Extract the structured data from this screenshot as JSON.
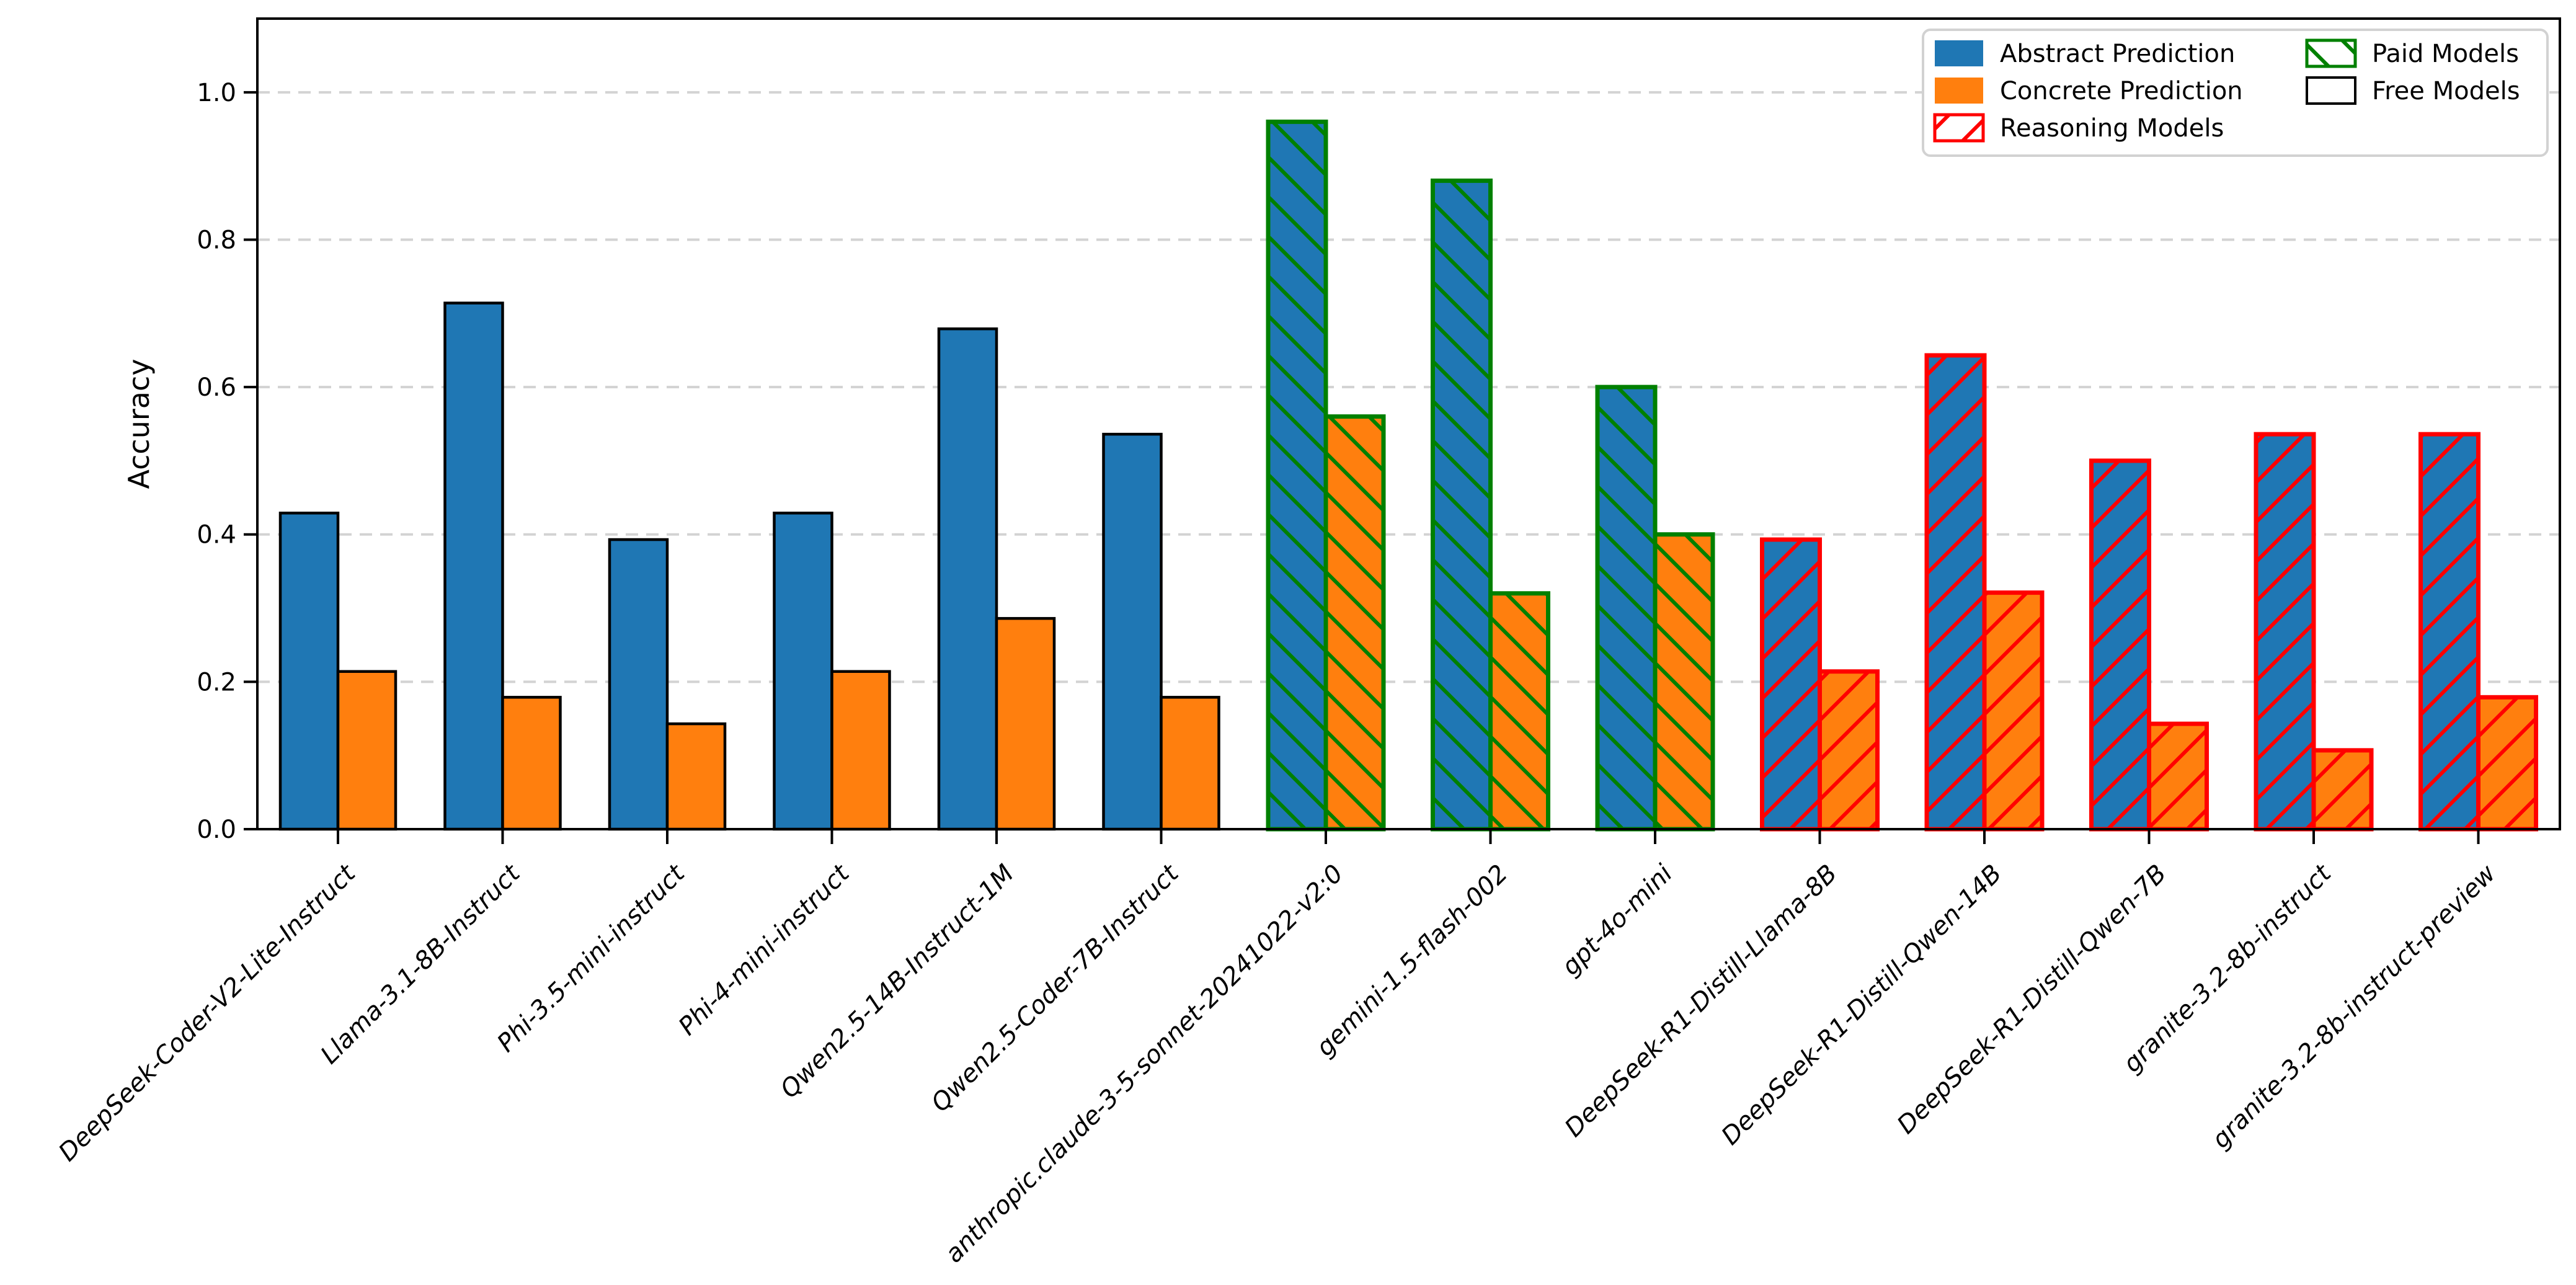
{
  "chart_data": {
    "type": "bar",
    "title": "",
    "xlabel": "",
    "ylabel": "Accuracy",
    "ylim": [
      0,
      1.1
    ],
    "yticks": [
      "0.0",
      "0.2",
      "0.4",
      "0.6",
      "0.8",
      "1.0"
    ],
    "ytick_values": [
      0.0,
      0.2,
      0.4,
      0.6,
      0.8,
      1.0
    ],
    "grid": "horizontal-dashed",
    "legend_position": "upper-right",
    "categories": [
      "DeepSeek-Coder-V2-Lite-Instruct",
      "Llama-3.1-8B-Instruct",
      "Phi-3.5-mini-instruct",
      "Phi-4-mini-instruct",
      "Qwen2.5-14B-Instruct-1M",
      "Qwen2.5-Coder-7B-Instruct",
      "anthropic.claude-3-5-sonnet-20241022-v2:0",
      "gemini-1.5-flash-002",
      "gpt-4o-mini",
      "DeepSeek-R1-Distill-Llama-8B",
      "DeepSeek-R1-Distill-Qwen-14B",
      "DeepSeek-R1-Distill-Qwen-7B",
      "granite-3.2-8b-instruct",
      "granite-3.2-8b-instruct-preview"
    ],
    "series": [
      {
        "name": "Abstract Prediction",
        "values": [
          0.429,
          0.714,
          0.393,
          0.429,
          0.679,
          0.536,
          0.96,
          0.88,
          0.6,
          0.393,
          0.643,
          0.5,
          0.536,
          0.536
        ]
      },
      {
        "name": "Concrete Prediction",
        "values": [
          0.214,
          0.179,
          0.143,
          0.214,
          0.286,
          0.179,
          0.56,
          0.32,
          0.4,
          0.214,
          0.321,
          0.143,
          0.107,
          0.179
        ]
      }
    ],
    "category_groups": [
      "free",
      "free",
      "free",
      "free",
      "free",
      "free",
      "paid",
      "paid",
      "paid",
      "reasoning",
      "reasoning",
      "reasoning",
      "reasoning",
      "reasoning"
    ],
    "legend_items": [
      {
        "label": "Abstract Prediction",
        "swatch": "abstract"
      },
      {
        "label": "Concrete Prediction",
        "swatch": "concrete"
      },
      {
        "label": "Reasoning Models",
        "swatch": "reasoning"
      },
      {
        "label": "Paid Models",
        "swatch": "paid"
      },
      {
        "label": "Free Models",
        "swatch": "free"
      }
    ],
    "group_styles": {
      "free": {
        "edge_color": "#000000",
        "hatch": "none"
      },
      "paid": {
        "edge_color": "#008000",
        "hatch": "\\"
      },
      "reasoning": {
        "edge_color": "#ff0000",
        "hatch": "/"
      }
    },
    "colors": {
      "abstract_fill": "#1f77b4",
      "concrete_fill": "#ff7f0e",
      "paid_edge": "#008000",
      "reasoning_edge": "#ff0000",
      "free_edge": "#000000",
      "gridline": "#d3d3d3",
      "axis": "#000000",
      "legend_border": "#d2d2d2",
      "background": "#ffffff"
    }
  }
}
